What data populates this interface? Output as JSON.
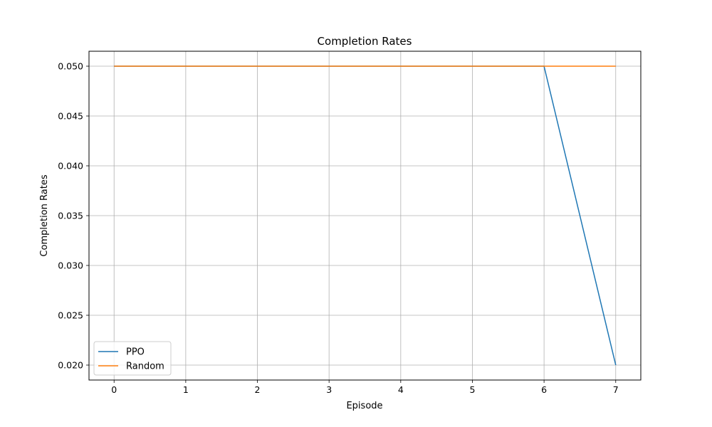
{
  "chart_data": {
    "type": "line",
    "title": "Completion Rates",
    "xlabel": "Episode",
    "ylabel": "Completion Rates",
    "x": [
      0,
      1,
      2,
      3,
      4,
      5,
      6,
      7
    ],
    "xlim": [
      -0.35,
      7.35
    ],
    "ylim": [
      0.0185,
      0.0515
    ],
    "xticks": [
      0,
      1,
      2,
      3,
      4,
      5,
      6,
      7
    ],
    "xtick_labels": [
      "0",
      "1",
      "2",
      "3",
      "4",
      "5",
      "6",
      "7"
    ],
    "yticks": [
      0.02,
      0.025,
      0.03,
      0.035,
      0.04,
      0.045,
      0.05
    ],
    "ytick_labels": [
      "0.020",
      "0.025",
      "0.030",
      "0.035",
      "0.040",
      "0.045",
      "0.050"
    ],
    "grid": true,
    "legend_position": "lower-left",
    "series": [
      {
        "name": "PPO",
        "color": "#1f77b4",
        "values": [
          0.05,
          0.05,
          0.05,
          0.05,
          0.05,
          0.05,
          0.05,
          0.02
        ]
      },
      {
        "name": "Random",
        "color": "#ff7f0e",
        "values": [
          0.05,
          0.05,
          0.05,
          0.05,
          0.05,
          0.05,
          0.05,
          0.05
        ]
      }
    ]
  }
}
